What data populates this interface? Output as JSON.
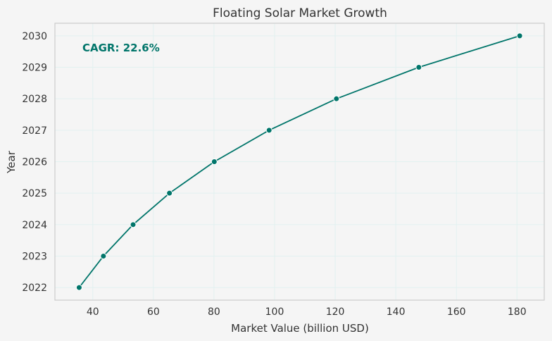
{
  "chart_data": {
    "type": "line",
    "title": "Floating Solar Market Growth",
    "xlabel": "Market Value (billion USD)",
    "ylabel": "Year",
    "xlim": [
      27.5,
      189
    ],
    "ylim": [
      2021.6,
      2030.4
    ],
    "xticks": [
      40,
      60,
      80,
      100,
      120,
      140,
      160,
      180
    ],
    "yticks": [
      2022,
      2023,
      2024,
      2025,
      2026,
      2027,
      2028,
      2029,
      2030
    ],
    "grid": true,
    "series": [
      {
        "x": [
          35.5,
          43.5,
          53.3,
          65.3,
          80.1,
          98.2,
          120.4,
          147.6,
          180.9
        ],
        "y": [
          2022,
          2023,
          2024,
          2025,
          2026,
          2027,
          2028,
          2029,
          2030
        ]
      }
    ],
    "annotation": {
      "text": "CAGR: 22.6%"
    }
  },
  "colors": {
    "line": "#00756a",
    "annotation": "#00756a",
    "grid": "#e2f1f0",
    "frame": "#cccccc",
    "plot_bg": "#f5f5f5"
  }
}
